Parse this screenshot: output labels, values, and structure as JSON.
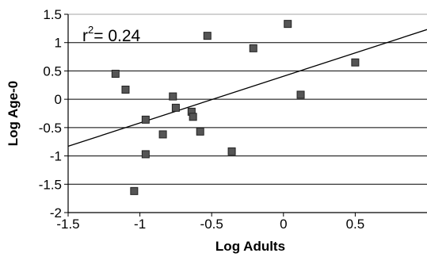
{
  "chart_data": {
    "type": "scatter",
    "xlabel": "Log Adults",
    "ylabel": "Log Age-0",
    "xlim": [
      -1.5,
      1.0
    ],
    "ylim": [
      -2,
      1.5
    ],
    "x_ticks": [
      -1.5,
      -1,
      -0.5,
      0,
      0.5
    ],
    "x_tick_labels": [
      "-1.5",
      "-1",
      "-0.5",
      "0",
      "0.5"
    ],
    "y_ticks": [
      1.5,
      1,
      0.5,
      0,
      -0.5,
      -1,
      -1.5,
      -2
    ],
    "y_tick_labels": [
      "1.5",
      "1",
      "0.5",
      "0",
      "-0.5",
      "-1",
      "-1.5",
      "-2"
    ],
    "grid": "horizontal",
    "annotation": {
      "base": "r",
      "sup": "2",
      "rest": "= 0.24"
    },
    "points": [
      {
        "x": -1.17,
        "y": 0.45
      },
      {
        "x": -1.1,
        "y": 0.17
      },
      {
        "x": -1.04,
        "y": -1.62
      },
      {
        "x": -0.96,
        "y": -0.36
      },
      {
        "x": -0.96,
        "y": -0.97
      },
      {
        "x": -0.84,
        "y": -0.62
      },
      {
        "x": -0.77,
        "y": 0.05
      },
      {
        "x": -0.75,
        "y": -0.15
      },
      {
        "x": -0.64,
        "y": -0.22
      },
      {
        "x": -0.63,
        "y": -0.31
      },
      {
        "x": -0.58,
        "y": -0.57
      },
      {
        "x": -0.53,
        "y": 1.12
      },
      {
        "x": -0.36,
        "y": -0.92
      },
      {
        "x": -0.21,
        "y": 0.9
      },
      {
        "x": 0.03,
        "y": 1.33
      },
      {
        "x": 0.12,
        "y": 0.08
      },
      {
        "x": 0.5,
        "y": 0.65
      }
    ],
    "trendline": {
      "x": [
        -1.5,
        1.0
      ],
      "y": [
        -0.83,
        1.23
      ]
    },
    "colors": {
      "marker": "#555555",
      "marker_edge": "#222222",
      "line": "#000000",
      "grid": "#000000"
    }
  }
}
